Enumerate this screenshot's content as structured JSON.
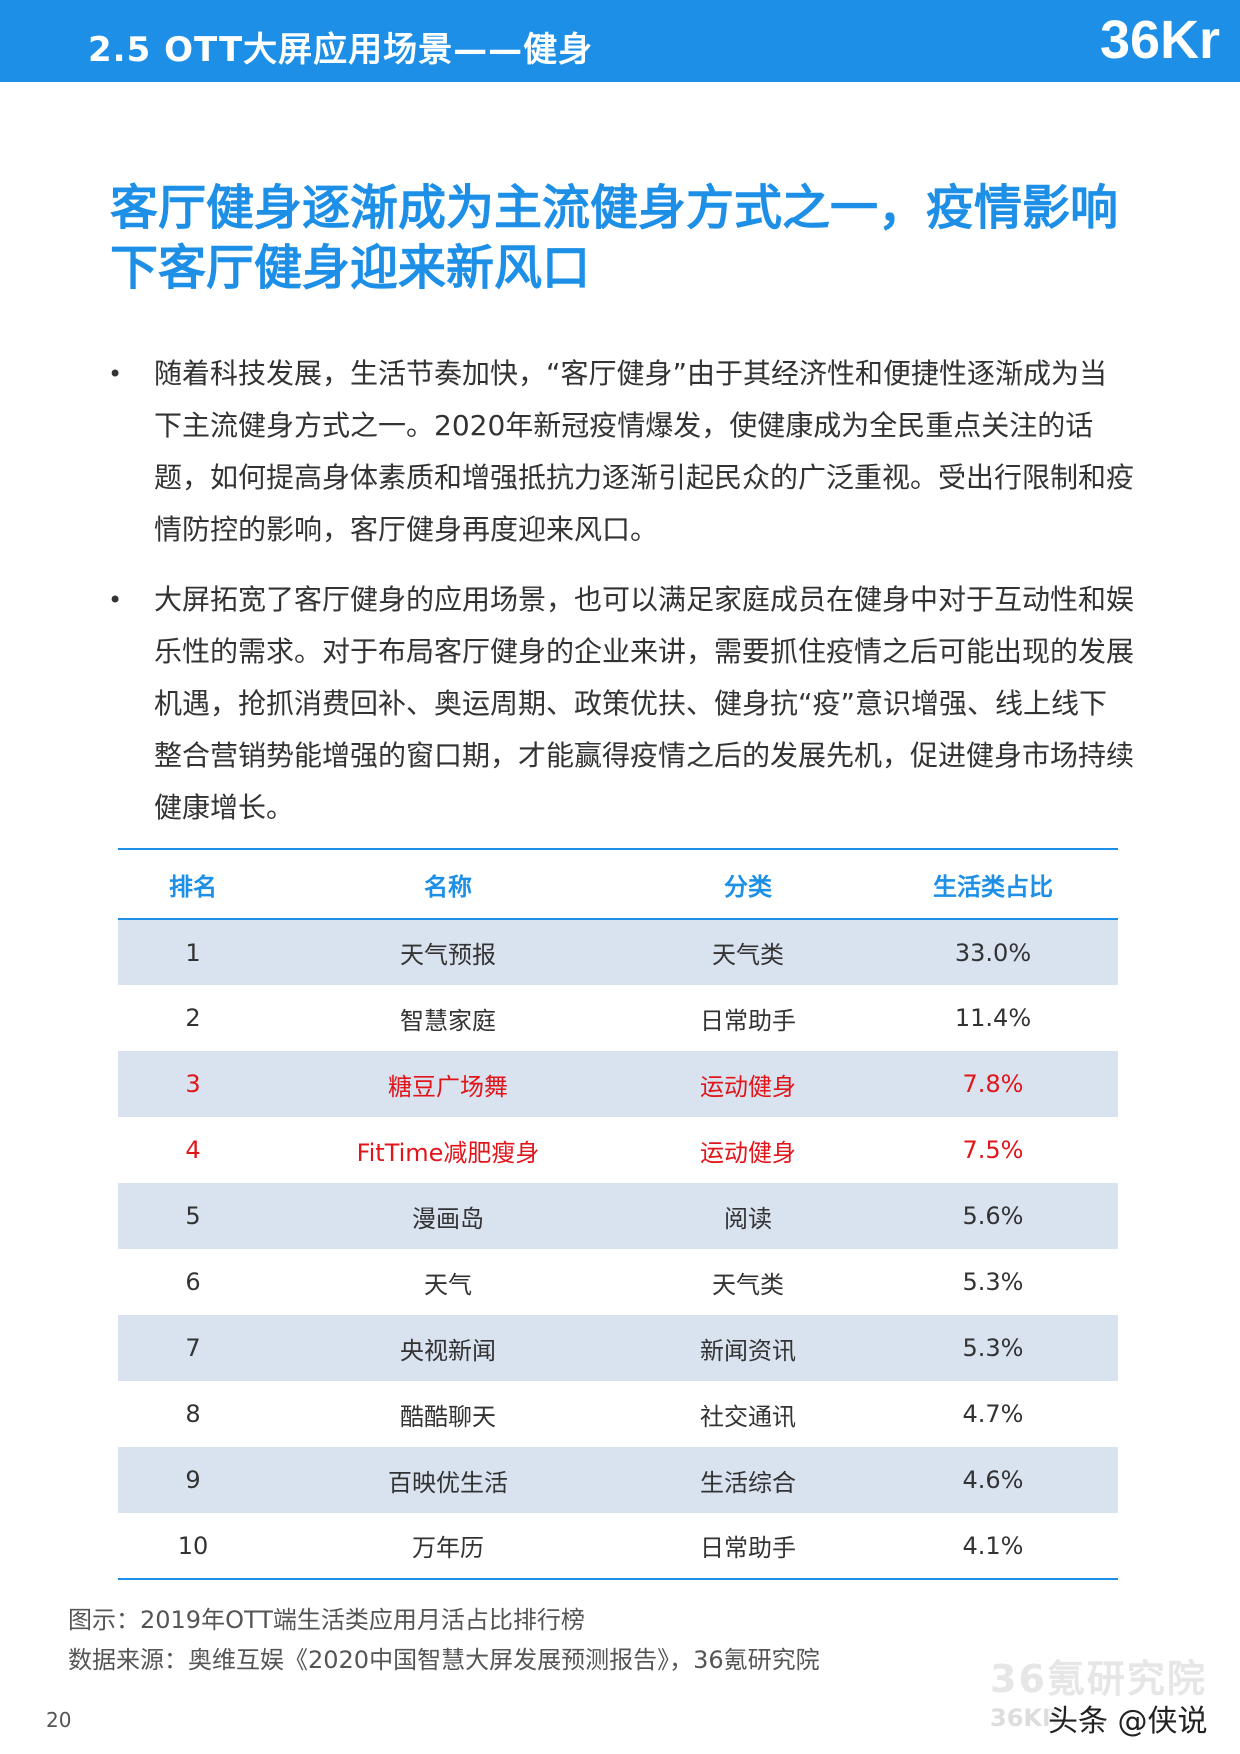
{
  "header": {
    "title": "2.5 OTT大屏应用场景——健身",
    "logo_text": "36Kr",
    "brand_color": "#1d8fe6"
  },
  "main_title": "客厅健身逐渐成为主流健身方式之一，疫情影响下客厅健身迎来新风口",
  "bullets": [
    {
      "symbol": "•",
      "text": "随着科技发展，生活节奏加快，“客厅健身”由于其经济性和便捷性逐渐成为当下主流健身方式之一。2020年新冠疫情爆发，使健康成为全民重点关注的话题，如何提高身体素质和增强抵抗力逐渐引起民众的广泛重视。受出行限制和疫情防控的影响，客厅健身再度迎来风口。"
    },
    {
      "symbol": "•",
      "text": "大屏拓宽了客厅健身的应用场景，也可以满足家庭成员在健身中对于互动性和娱乐性的需求。对于布局客厅健身的企业来讲，需要抓住疫情之后可能出现的发展机遇，抢抓消费回补、奥运周期、政策优扶、健身抗“疫”意识增强、线上线下整合营销势能增强的窗口期，才能赢得疫情之后的发展先机，促进健身市场持续健康增长。"
    }
  ],
  "table": {
    "headers": [
      "排名",
      "名称",
      "分类",
      "生活类占比"
    ],
    "rows": [
      {
        "rank": "1",
        "name": "天气预报",
        "category": "天气类",
        "share": "33.0%"
      },
      {
        "rank": "2",
        "name": "智慧家庭",
        "category": "日常助手",
        "share": "11.4%"
      },
      {
        "rank": "3",
        "name": "糖豆广场舞",
        "category": "运动健身",
        "share": "7.8%"
      },
      {
        "rank": "4",
        "name": "FitTime减肥瘦身",
        "category": "运动健身",
        "share": "7.5%"
      },
      {
        "rank": "5",
        "name": "漫画岛",
        "category": "阅读",
        "share": "5.6%"
      },
      {
        "rank": "6",
        "name": "天气",
        "category": "天气类",
        "share": "5.3%"
      },
      {
        "rank": "7",
        "name": "央视新闻",
        "category": "新闻资讯",
        "share": "5.3%"
      },
      {
        "rank": "8",
        "name": "酷酷聊天",
        "category": "社交通讯",
        "share": "4.7%"
      },
      {
        "rank": "9",
        "name": "百映优生活",
        "category": "生活综合",
        "share": "4.6%"
      },
      {
        "rank": "10",
        "name": "万年历",
        "category": "日常助手",
        "share": "4.1%"
      }
    ],
    "shaded_color": "#d9e2ef",
    "highlight_color": "#e0161b"
  },
  "caption": {
    "figure": "图示：2019年OTT端生活类应用月活占比排行榜",
    "source": "数据来源：奥维互娱《2020中国智慧大屏发展预测报告》，36氪研究院"
  },
  "footer": {
    "page_number": "20",
    "watermark_cn": "36氪研究院",
    "watermark_en": "36KR",
    "social_tag": "头条 @侠说"
  }
}
